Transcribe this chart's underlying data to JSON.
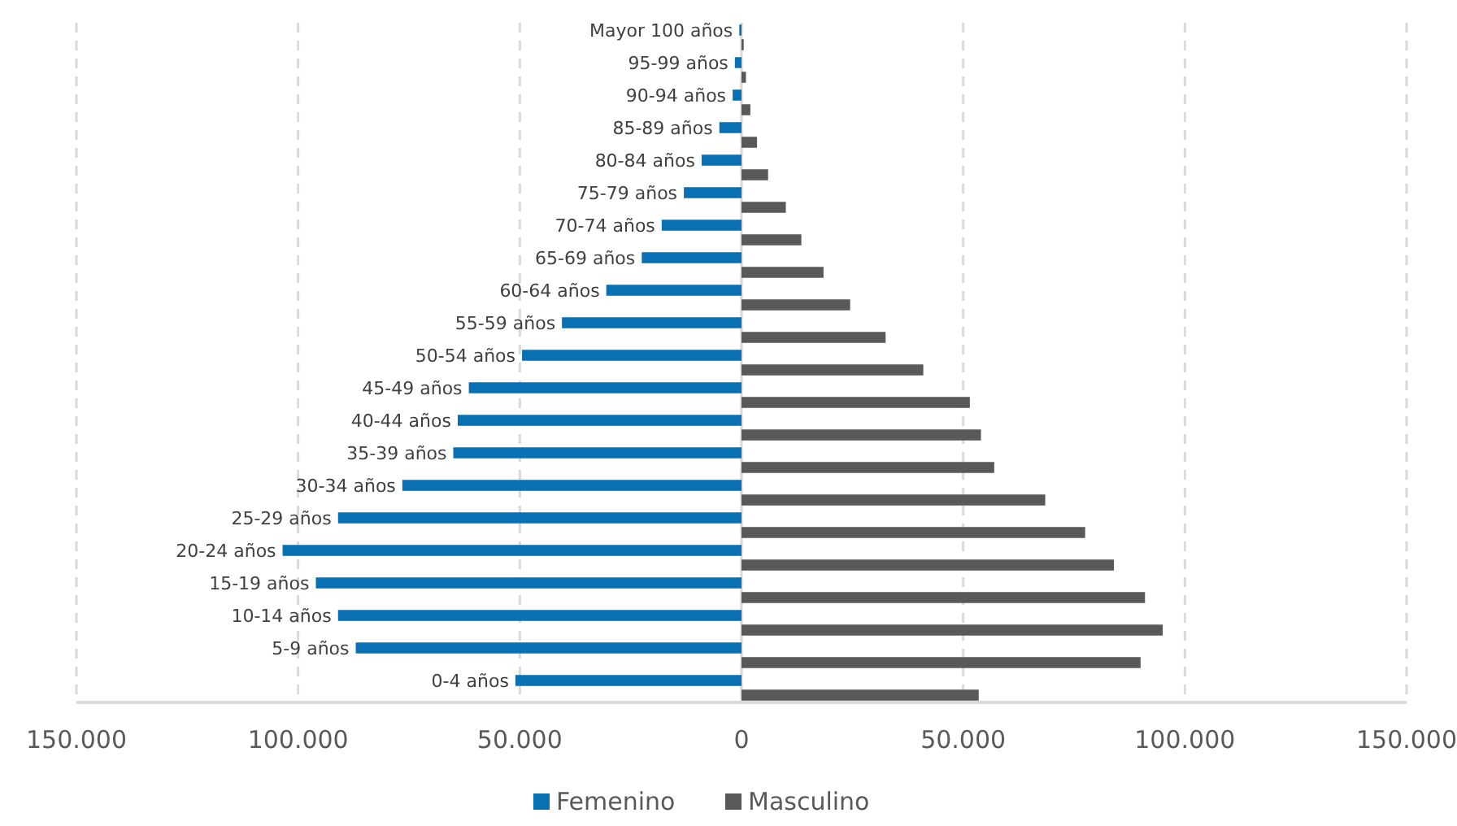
{
  "chart_data": {
    "type": "bar",
    "orientation": "horizontal",
    "categories": [
      "Mayor 100 años",
      "95-99 años",
      "90-94 años",
      "85-89 años",
      "80-84 años",
      "75-79 años",
      "70-74 años",
      "65-69 años",
      "60-64 años",
      "55-59 años",
      "50-54 años",
      "45-49 años",
      "40-44 años",
      "35-39 años",
      "30-34 años",
      "25-29 años",
      "20-24 años",
      "15-19 años",
      "10-14 años",
      "5-9 años",
      "0-4 años"
    ],
    "series": [
      {
        "name": "Femenino",
        "color": "#0a70b4",
        "values": [
          -500,
          -1500,
          -2000,
          -5000,
          -9000,
          -13000,
          -18000,
          -22500,
          -30500,
          -40500,
          -49500,
          -61500,
          -64000,
          -65000,
          -76500,
          -91000,
          -103500,
          -96000,
          -91000,
          -87000,
          -51000
        ]
      },
      {
        "name": "Masculino",
        "color": "#595959",
        "values": [
          500,
          1000,
          2000,
          3500,
          6000,
          10000,
          13500,
          18500,
          24500,
          32500,
          41000,
          51500,
          54000,
          57000,
          68500,
          77500,
          84000,
          91000,
          95000,
          90000,
          53500
        ]
      }
    ],
    "xlim": [
      -150000,
      150000
    ],
    "xticks": [
      {
        "value": -150000,
        "label": "150.000"
      },
      {
        "value": -100000,
        "label": "100.000"
      },
      {
        "value": -50000,
        "label": "50.000"
      },
      0,
      {
        "value": 50000,
        "label": "50.000"
      },
      {
        "value": 100000,
        "label": "100.000"
      },
      {
        "value": 150000,
        "label": "150.000"
      }
    ],
    "grid": "x",
    "legend": "bottom"
  }
}
